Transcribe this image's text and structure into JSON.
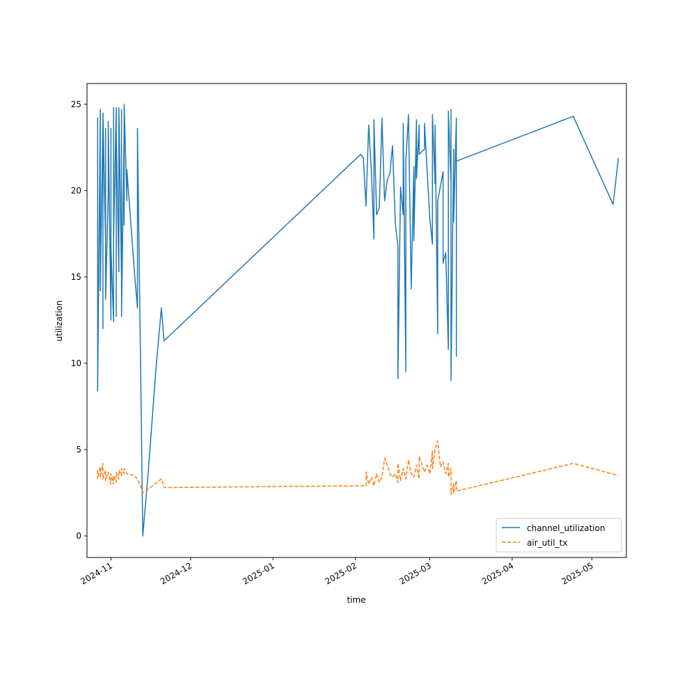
{
  "chart_data": {
    "type": "line",
    "title": "",
    "xlabel": "time",
    "ylabel": "utilization",
    "x_type": "date",
    "xlim": [
      "2024-10-23",
      "2025-05-14"
    ],
    "ylim": [
      -1.25,
      26.2
    ],
    "xticks": [
      "2024-11-01",
      "2024-12-01",
      "2025-01-01",
      "2025-02-01",
      "2025-03-01",
      "2025-04-01",
      "2025-05-01"
    ],
    "xtick_labels": [
      "2024-11",
      "2024-12",
      "2025-01",
      "2025-02",
      "2025-03",
      "2025-04",
      "2025-05"
    ],
    "yticks": [
      0,
      5,
      10,
      15,
      20,
      25
    ],
    "ytick_labels": [
      "0",
      "5",
      "10",
      "15",
      "20",
      "25"
    ],
    "grid": false,
    "legend_position": "lower-right",
    "series": [
      {
        "name": "channel_utilization",
        "color": "#1f77b4",
        "dash": "solid",
        "points": [
          [
            "2024-10-27",
            20.8
          ],
          [
            "2024-10-27",
            24.2
          ],
          [
            "2024-10-27",
            8.4
          ],
          [
            "2024-10-28",
            24.7
          ],
          [
            "2024-10-28",
            18.3
          ],
          [
            "2024-10-28",
            23.9
          ],
          [
            "2024-10-28",
            14.2
          ],
          [
            "2024-10-29",
            24.0
          ],
          [
            "2024-10-29",
            12.0
          ],
          [
            "2024-10-29",
            24.5
          ],
          [
            "2024-10-30",
            17.0
          ],
          [
            "2024-10-30",
            23.6
          ],
          [
            "2024-10-30",
            13.7
          ],
          [
            "2024-10-31",
            19.8
          ],
          [
            "2024-10-31",
            24.0
          ],
          [
            "2024-11-01",
            12.5
          ],
          [
            "2024-11-01",
            23.6
          ],
          [
            "2024-11-01",
            16.7
          ],
          [
            "2024-11-02",
            12.4
          ],
          [
            "2024-11-02",
            24.8
          ],
          [
            "2024-11-02",
            17.2
          ],
          [
            "2024-11-03",
            24.8
          ],
          [
            "2024-11-03",
            12.7
          ],
          [
            "2024-11-03",
            23.6
          ],
          [
            "2024-11-04",
            15.3
          ],
          [
            "2024-11-04",
            24.8
          ],
          [
            "2024-11-05",
            14.9
          ],
          [
            "2024-11-05",
            24.7
          ],
          [
            "2024-11-05",
            12.7
          ],
          [
            "2024-11-06",
            23.5
          ],
          [
            "2024-11-06",
            18.0
          ],
          [
            "2024-11-06",
            25.0
          ],
          [
            "2024-11-07",
            19.4
          ],
          [
            "2024-11-07",
            21.2
          ],
          [
            "2024-11-10",
            15.0
          ],
          [
            "2024-11-11",
            13.2
          ],
          [
            "2024-11-11",
            23.6
          ],
          [
            "2024-11-13",
            0.0
          ],
          [
            "2024-11-15",
            3.6
          ],
          [
            "2024-11-18",
            9.8
          ],
          [
            "2024-11-20",
            13.2
          ],
          [
            "2024-11-21",
            11.3
          ],
          [
            "2025-02-03",
            22.1
          ],
          [
            "2025-02-04",
            21.9
          ],
          [
            "2025-02-05",
            19.1
          ],
          [
            "2025-02-06",
            23.8
          ],
          [
            "2025-02-07",
            21.2
          ],
          [
            "2025-02-08",
            17.2
          ],
          [
            "2025-02-08",
            24.1
          ],
          [
            "2025-02-09",
            18.6
          ],
          [
            "2025-02-10",
            19.0
          ],
          [
            "2025-02-11",
            24.2
          ],
          [
            "2025-02-12",
            19.4
          ],
          [
            "2025-02-13",
            20.6
          ],
          [
            "2025-02-14",
            21.0
          ],
          [
            "2025-02-15",
            22.6
          ],
          [
            "2025-02-16",
            18.1
          ],
          [
            "2025-02-17",
            16.8
          ],
          [
            "2025-02-17",
            9.1
          ],
          [
            "2025-02-18",
            20.2
          ],
          [
            "2025-02-19",
            18.6
          ],
          [
            "2025-02-19",
            23.9
          ],
          [
            "2025-02-20",
            9.5
          ],
          [
            "2025-02-20",
            21.7
          ],
          [
            "2025-02-21",
            24.4
          ],
          [
            "2025-02-22",
            14.3
          ],
          [
            "2025-02-23",
            21.4
          ],
          [
            "2025-02-23",
            17.1
          ],
          [
            "2025-02-24",
            24.1
          ],
          [
            "2025-02-24",
            20.7
          ],
          [
            "2025-02-25",
            23.8
          ],
          [
            "2025-02-25",
            22.1
          ],
          [
            "2025-02-27",
            22.4
          ],
          [
            "2025-02-27",
            23.9
          ],
          [
            "2025-03-01",
            18.4
          ],
          [
            "2025-03-02",
            16.9
          ],
          [
            "2025-03-02",
            24.4
          ],
          [
            "2025-03-03",
            20.4
          ],
          [
            "2025-03-03",
            23.8
          ],
          [
            "2025-03-04",
            11.7
          ],
          [
            "2025-03-04",
            19.4
          ],
          [
            "2025-03-06",
            21.1
          ],
          [
            "2025-03-06",
            15.8
          ],
          [
            "2025-03-07",
            16.4
          ],
          [
            "2025-03-08",
            10.8
          ],
          [
            "2025-03-08",
            24.6
          ],
          [
            "2025-03-09",
            20.4
          ],
          [
            "2025-03-09",
            24.7
          ],
          [
            "2025-03-09",
            9.0
          ],
          [
            "2025-03-10",
            22.4
          ],
          [
            "2025-03-10",
            18.2
          ],
          [
            "2025-03-11",
            24.2
          ],
          [
            "2025-03-11",
            10.4
          ],
          [
            "2025-03-11",
            21.7
          ],
          [
            "2025-04-24",
            24.3
          ],
          [
            "2025-05-09",
            19.2
          ],
          [
            "2025-05-11",
            21.9
          ]
        ]
      },
      {
        "name": "air_util_tx",
        "color": "#ff7f0e",
        "dash": "dashed",
        "points": [
          [
            "2024-10-27",
            3.8
          ],
          [
            "2024-10-27",
            3.3
          ],
          [
            "2024-10-28",
            4.0
          ],
          [
            "2024-10-28",
            3.4
          ],
          [
            "2024-10-29",
            4.2
          ],
          [
            "2024-10-29",
            3.3
          ],
          [
            "2024-10-30",
            3.8
          ],
          [
            "2024-10-30",
            3.2
          ],
          [
            "2024-10-31",
            3.7
          ],
          [
            "2024-11-01",
            3.0
          ],
          [
            "2024-11-01",
            3.6
          ],
          [
            "2024-11-02",
            3.0
          ],
          [
            "2024-11-02",
            3.5
          ],
          [
            "2024-11-03",
            3.1
          ],
          [
            "2024-11-03",
            3.7
          ],
          [
            "2024-11-04",
            3.3
          ],
          [
            "2024-11-04",
            3.8
          ],
          [
            "2024-11-05",
            3.5
          ],
          [
            "2024-11-05",
            3.9
          ],
          [
            "2024-11-06",
            3.6
          ],
          [
            "2024-11-06",
            3.9
          ],
          [
            "2024-11-07",
            3.6
          ],
          [
            "2024-11-10",
            3.5
          ],
          [
            "2024-11-12",
            3.0
          ],
          [
            "2024-11-13",
            2.5
          ],
          [
            "2024-11-15",
            2.7
          ],
          [
            "2024-11-20",
            3.3
          ],
          [
            "2024-11-21",
            2.8
          ],
          [
            "2025-02-03",
            2.9
          ],
          [
            "2025-02-05",
            2.9
          ],
          [
            "2025-02-05",
            3.7
          ],
          [
            "2025-02-06",
            3.0
          ],
          [
            "2025-02-07",
            3.4
          ],
          [
            "2025-02-08",
            2.9
          ],
          [
            "2025-02-09",
            3.6
          ],
          [
            "2025-02-10",
            3.1
          ],
          [
            "2025-02-11",
            3.4
          ],
          [
            "2025-02-12",
            4.5
          ],
          [
            "2025-02-13",
            4.1
          ],
          [
            "2025-02-14",
            3.6
          ],
          [
            "2025-02-15",
            3.4
          ],
          [
            "2025-02-16",
            3.6
          ],
          [
            "2025-02-17",
            3.1
          ],
          [
            "2025-02-17",
            4.2
          ],
          [
            "2025-02-18",
            3.2
          ],
          [
            "2025-02-19",
            3.9
          ],
          [
            "2025-02-20",
            3.3
          ],
          [
            "2025-02-21",
            4.4
          ],
          [
            "2025-02-22",
            3.6
          ],
          [
            "2025-02-23",
            3.4
          ],
          [
            "2025-02-24",
            4.1
          ],
          [
            "2025-02-25",
            3.3
          ],
          [
            "2025-02-25",
            4.6
          ],
          [
            "2025-02-27",
            3.7
          ],
          [
            "2025-02-28",
            4.1
          ],
          [
            "2025-03-01",
            3.6
          ],
          [
            "2025-03-02",
            4.9
          ],
          [
            "2025-03-02",
            3.9
          ],
          [
            "2025-03-03",
            5.0
          ],
          [
            "2025-03-04",
            5.5
          ],
          [
            "2025-03-05",
            4.0
          ],
          [
            "2025-03-06",
            4.3
          ],
          [
            "2025-03-07",
            3.6
          ],
          [
            "2025-03-08",
            4.2
          ],
          [
            "2025-03-08",
            3.4
          ],
          [
            "2025-03-09",
            3.9
          ],
          [
            "2025-03-09",
            2.4
          ],
          [
            "2025-03-10",
            3.0
          ],
          [
            "2025-03-10",
            2.5
          ],
          [
            "2025-03-11",
            3.2
          ],
          [
            "2025-03-11",
            2.6
          ],
          [
            "2025-04-24",
            4.2
          ],
          [
            "2025-05-11",
            3.5
          ]
        ]
      }
    ]
  }
}
